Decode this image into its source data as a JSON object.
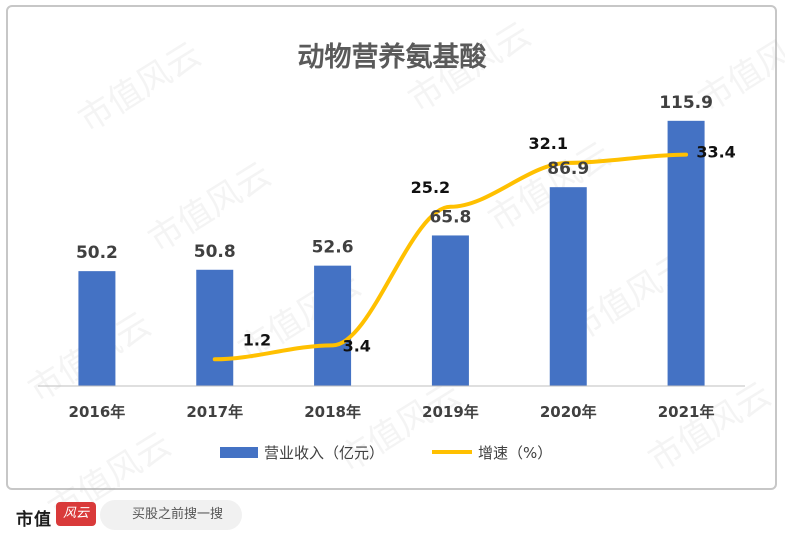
{
  "chart_data": {
    "type": "bar+line",
    "title": "动物营养氨基酸",
    "categories": [
      "2016年",
      "2017年",
      "2018年",
      "2019年",
      "2020年",
      "2021年"
    ],
    "series": [
      {
        "name": "营业收入（亿元）",
        "type": "bar",
        "color": "#4472C4",
        "values": [
          50.2,
          50.8,
          52.6,
          65.8,
          86.9,
          115.9
        ],
        "labels": [
          "50.2",
          "50.8",
          "52.6",
          "65.8",
          "86.9",
          "115.9"
        ]
      },
      {
        "name": "增速（%）",
        "type": "line",
        "color": "#FFC000",
        "values": [
          null,
          1.2,
          3.4,
          25.2,
          32.1,
          33.4
        ],
        "labels": [
          "",
          "1.2",
          "3.4",
          "25.2",
          "32.1",
          "33.4"
        ]
      }
    ],
    "bar_ylim": [
      0,
      125
    ],
    "line_ylim": [
      -3,
      42
    ],
    "legend_position": "bottom",
    "grid": false
  },
  "watermark": "市值风云",
  "footer": {
    "brand": "市值",
    "brand_mark": "风云",
    "search_text": "买股之前搜一搜"
  }
}
